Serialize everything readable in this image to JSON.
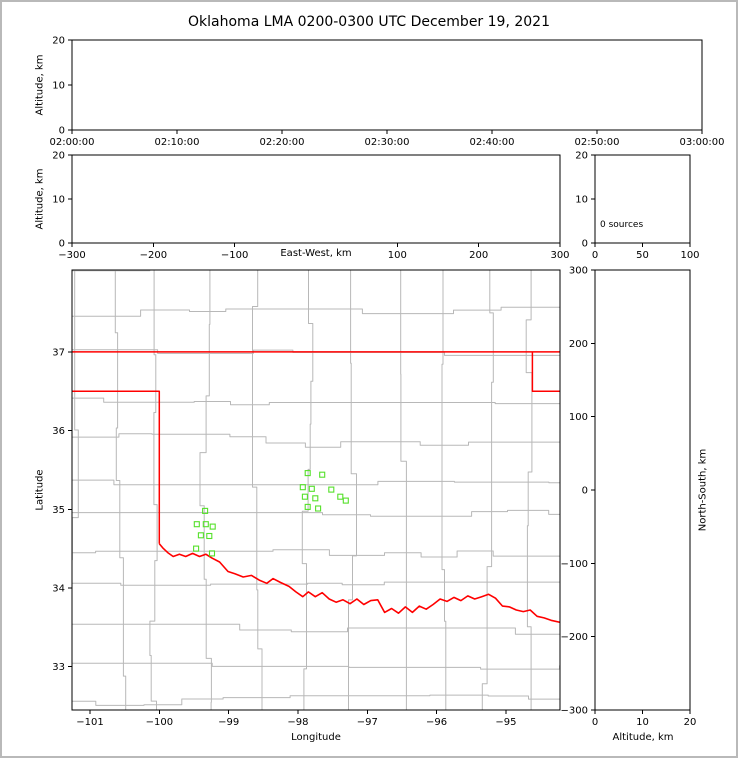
{
  "title": "Oklahoma LMA 0200-0300 UTC December 19, 2021",
  "labels": {
    "time_height_ylabel": "Altitude, km",
    "ew_height_ylabel": "Altitude, km",
    "ew_height_xlabel": "East-West, km",
    "map_xlabel": "Longitude",
    "map_ylabel": "Latitude",
    "ns_height_xlabel": "Altitude, km",
    "ns_height_ylabel": "North-South, km",
    "histogram_annotation": "0 sources"
  },
  "style": {
    "axis_color": "#000000",
    "county_line_color": "#b8b8b8",
    "state_border_color": "#ff0000",
    "river_color": "#ff0000",
    "source_point_color": "#55e02a"
  },
  "chart_data": [
    {
      "id": "time_height",
      "type": "scatter",
      "ylabel": "Altitude, km",
      "xlim": [
        0,
        60
      ],
      "xtick_values": [
        0,
        10,
        20,
        30,
        40,
        50,
        60
      ],
      "xtick_labels": [
        "02:00:00",
        "02:10:00",
        "02:20:00",
        "02:30:00",
        "02:40:00",
        "02:50:00",
        "03:00:00"
      ],
      "ylim": [
        0,
        20
      ],
      "ytick_values": [
        0,
        10,
        20
      ],
      "ytick_labels": [
        "0",
        "10",
        "20"
      ],
      "points": []
    },
    {
      "id": "ew_height",
      "type": "scatter",
      "ylabel": "Altitude, km",
      "xlabel": "East-West, km",
      "xlim": [
        -300,
        300
      ],
      "xtick_values": [
        -300,
        -200,
        -100,
        100,
        200,
        300
      ],
      "xtick_labels": [
        "−300",
        "−200",
        "−100",
        "100",
        "200",
        "300"
      ],
      "ylim": [
        0,
        20
      ],
      "ytick_values": [
        0,
        10,
        20
      ],
      "ytick_labels": [
        "0",
        "10",
        "20"
      ],
      "points": []
    },
    {
      "id": "alt_histogram",
      "type": "line",
      "annotation": "0 sources",
      "xlim": [
        0,
        100
      ],
      "xtick_values": [
        0,
        50,
        100
      ],
      "xtick_labels": [
        "0",
        "50",
        "100"
      ],
      "ylim": [
        0,
        20
      ],
      "ytick_values": [
        0,
        10,
        20
      ],
      "ytick_labels": [
        "0",
        "10",
        "20"
      ],
      "points": []
    },
    {
      "id": "plan_view_map",
      "type": "scatter",
      "xlabel": "Longitude",
      "ylabel": "Latitude",
      "xlim": [
        -101.26,
        -94.22
      ],
      "xtick_values": [
        -101,
        -100,
        -99,
        -98,
        -97,
        -96,
        -95
      ],
      "xtick_labels": [
        "−101",
        "−100",
        "−99",
        "−98",
        "−97",
        "−96",
        "−95"
      ],
      "ylim": [
        32.45,
        38.04
      ],
      "ytick_values": [
        33,
        34,
        35,
        36,
        37
      ],
      "ytick_labels": [
        "33",
        "34",
        "35",
        "36",
        "37"
      ],
      "points": [
        [
          -99.34,
          34.98
        ],
        [
          -99.46,
          34.81
        ],
        [
          -99.33,
          34.81
        ],
        [
          -99.23,
          34.78
        ],
        [
          -99.4,
          34.67
        ],
        [
          -99.28,
          34.66
        ],
        [
          -99.47,
          34.5
        ],
        [
          -99.24,
          34.44
        ],
        [
          -97.86,
          35.46
        ],
        [
          -97.65,
          35.44
        ],
        [
          -97.93,
          35.28
        ],
        [
          -97.8,
          35.26
        ],
        [
          -97.52,
          35.25
        ],
        [
          -97.9,
          35.16
        ],
        [
          -97.75,
          35.14
        ],
        [
          -97.39,
          35.16
        ],
        [
          -97.31,
          35.11
        ],
        [
          -97.86,
          35.03
        ],
        [
          -97.71,
          35.01
        ]
      ]
    },
    {
      "id": "ns_height",
      "type": "scatter",
      "xlabel": "Altitude, km",
      "ylabel": "North-South, km",
      "xlim": [
        0,
        20
      ],
      "xtick_values": [
        0,
        10,
        20
      ],
      "xtick_labels": [
        "0",
        "10",
        "20"
      ],
      "ylim": [
        -300,
        300
      ],
      "ytick_values": [
        -300,
        -200,
        -100,
        0,
        100,
        200,
        300
      ],
      "ytick_labels": [
        "−300",
        "−200",
        "−100",
        "0",
        "100",
        "200",
        "300"
      ],
      "points": []
    }
  ],
  "map_layers": {
    "state_borders": [
      [
        [
          -101.3,
          37.0
        ],
        [
          -94.18,
          37.0
        ]
      ],
      [
        [
          -101.3,
          36.5
        ],
        [
          -100.0,
          36.5
        ],
        [
          -100.0,
          34.563
        ]
      ],
      [
        [
          -94.618,
          37.0
        ],
        [
          -94.618,
          36.5
        ],
        [
          -94.18,
          36.5
        ]
      ]
    ],
    "river": [
      [
        -100.0,
        34.563
      ],
      [
        -99.95,
        34.51
      ],
      [
        -99.88,
        34.45
      ],
      [
        -99.8,
        34.4
      ],
      [
        -99.71,
        34.43
      ],
      [
        -99.62,
        34.4
      ],
      [
        -99.52,
        34.44
      ],
      [
        -99.42,
        34.4
      ],
      [
        -99.33,
        34.43
      ],
      [
        -99.24,
        34.38
      ],
      [
        -99.13,
        34.33
      ],
      [
        -99.01,
        34.21
      ],
      [
        -98.91,
        34.18
      ],
      [
        -98.79,
        34.14
      ],
      [
        -98.67,
        34.16
      ],
      [
        -98.56,
        34.1
      ],
      [
        -98.45,
        34.06
      ],
      [
        -98.36,
        34.12
      ],
      [
        -98.25,
        34.07
      ],
      [
        -98.13,
        34.02
      ],
      [
        -98.03,
        33.95
      ],
      [
        -97.93,
        33.89
      ],
      [
        -97.85,
        33.95
      ],
      [
        -97.75,
        33.89
      ],
      [
        -97.65,
        33.94
      ],
      [
        -97.55,
        33.86
      ],
      [
        -97.45,
        33.82
      ],
      [
        -97.35,
        33.85
      ],
      [
        -97.25,
        33.8
      ],
      [
        -97.15,
        33.86
      ],
      [
        -97.05,
        33.79
      ],
      [
        -96.95,
        33.84
      ],
      [
        -96.85,
        33.85
      ],
      [
        -96.75,
        33.69
      ],
      [
        -96.65,
        33.74
      ],
      [
        -96.55,
        33.68
      ],
      [
        -96.45,
        33.76
      ],
      [
        -96.35,
        33.69
      ],
      [
        -96.25,
        33.77
      ],
      [
        -96.15,
        33.73
      ],
      [
        -96.05,
        33.79
      ],
      [
        -95.95,
        33.86
      ],
      [
        -95.85,
        33.83
      ],
      [
        -95.75,
        33.88
      ],
      [
        -95.65,
        33.84
      ],
      [
        -95.55,
        33.9
      ],
      [
        -95.45,
        33.86
      ],
      [
        -95.35,
        33.89
      ],
      [
        -95.25,
        33.92
      ],
      [
        -95.15,
        33.87
      ],
      [
        -95.05,
        33.77
      ],
      [
        -94.95,
        33.76
      ],
      [
        -94.85,
        33.72
      ],
      [
        -94.75,
        33.7
      ],
      [
        -94.65,
        33.72
      ],
      [
        -94.55,
        33.64
      ],
      [
        -94.45,
        33.62
      ],
      [
        -94.35,
        33.59
      ],
      [
        -94.2,
        33.56
      ]
    ]
  }
}
